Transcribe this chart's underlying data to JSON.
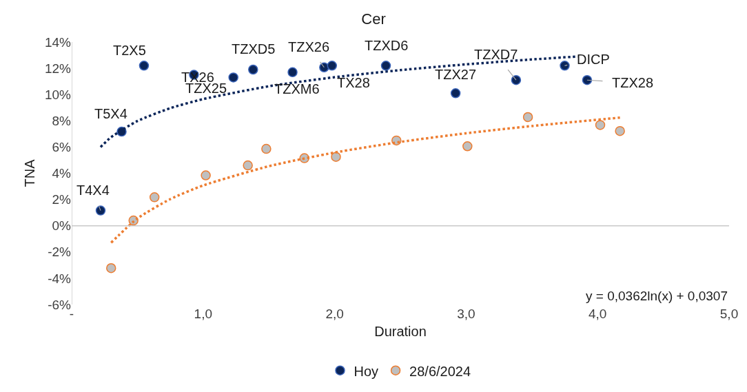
{
  "chart_data": {
    "type": "scatter",
    "title": "Cer",
    "xlabel": "Duration",
    "ylabel": "TNA",
    "xlim": [
      0,
      5
    ],
    "xticks": [
      {
        "value": 0,
        "label": "-"
      },
      {
        "value": 1,
        "label": "1,0"
      },
      {
        "value": 2,
        "label": "2,0"
      },
      {
        "value": 3,
        "label": "3,0"
      },
      {
        "value": 4,
        "label": "4,0"
      },
      {
        "value": 5,
        "label": "5,0"
      }
    ],
    "ylim": [
      -6,
      14
    ],
    "yticks": [
      {
        "value": -6,
        "label": "-6%"
      },
      {
        "value": -4,
        "label": "-4%"
      },
      {
        "value": -2,
        "label": "-2%"
      },
      {
        "value": 0,
        "label": "0%"
      },
      {
        "value": 2,
        "label": "2%"
      },
      {
        "value": 4,
        "label": "4%"
      },
      {
        "value": 6,
        "label": "6%"
      },
      {
        "value": 8,
        "label": "8%"
      },
      {
        "value": 10,
        "label": "10%"
      },
      {
        "value": 12,
        "label": "12%"
      },
      {
        "value": 14,
        "label": "14%"
      }
    ],
    "ref_lines": [
      {
        "axis": "y",
        "value": 0,
        "color": "#c8c8c8"
      }
    ],
    "legend": "bottom",
    "marker": "circle",
    "series": [
      {
        "name": "Hoy",
        "color": "#0b2559",
        "x": [
          0.22,
          0.38,
          0.55,
          0.93,
          1.23,
          1.38,
          1.68,
          1.92,
          1.98,
          2.39,
          2.92,
          3.38,
          3.75,
          3.92
        ],
        "values": [
          1.16,
          7.17,
          12.2,
          11.5,
          11.3,
          11.9,
          11.7,
          12.07,
          12.2,
          12.2,
          10.1,
          11.1,
          12.2,
          11.1
        ]
      },
      {
        "name": "28/6/2024",
        "color": "#ed7d31",
        "x": [
          0.3,
          0.47,
          0.63,
          1.02,
          1.34,
          1.48,
          1.77,
          2.01,
          2.47,
          3.01,
          3.47,
          4.02,
          4.17
        ],
        "values": [
          -3.23,
          0.4,
          2.17,
          3.84,
          4.6,
          5.86,
          5.15,
          5.25,
          6.5,
          6.06,
          8.28,
          7.68,
          7.22
        ]
      },
      {
        "type": "line",
        "color": "#0b2559",
        "line_style": "dotted",
        "marker": "none",
        "x": [
          0.22,
          0.3,
          0.5,
          0.75,
          1,
          1.5,
          2,
          2.5,
          3,
          3.5,
          3.85
        ],
        "values": [
          6.0,
          6.75,
          7.98,
          8.96,
          9.65,
          10.63,
          11.32,
          11.86,
          12.3,
          12.67,
          12.9
        ]
      },
      {
        "type": "line",
        "color": "#ed7d31",
        "line_style": "dotted",
        "marker": "none",
        "x": [
          0.3,
          0.5,
          0.75,
          1,
          1.5,
          2,
          2.5,
          3,
          3.5,
          4.17
        ],
        "values": [
          -1.29,
          0.56,
          2.03,
          3.07,
          4.54,
          5.58,
          6.39,
          7.05,
          7.6,
          8.24
        ]
      }
    ],
    "annotations": [
      {
        "text": "T4X4",
        "x": 0.22,
        "y": 1.16
      },
      {
        "text": "T5X4",
        "x": 0.38,
        "y": 7.17
      },
      {
        "text": "T2X5",
        "x": 0.55,
        "y": 12.2
      },
      {
        "text": "TX26",
        "x": 0.93,
        "y": 11.5
      },
      {
        "text": "TZX25",
        "x": 1.23,
        "y": 11.3
      },
      {
        "text": "TZXD5",
        "x": 1.38,
        "y": 11.9
      },
      {
        "text": "TZXM6",
        "x": 1.68,
        "y": 11.7
      },
      {
        "text": "TZX26",
        "x": 1.92,
        "y": 12.07
      },
      {
        "text": "TX28",
        "x": 1.98,
        "y": 12.2
      },
      {
        "text": "TZXD6",
        "x": 2.39,
        "y": 12.2
      },
      {
        "text": "TZX27",
        "x": 2.92,
        "y": 10.1
      },
      {
        "text": "TZXD7",
        "x": 3.38,
        "y": 11.1
      },
      {
        "text": "DICP",
        "x": 3.75,
        "y": 12.2
      },
      {
        "text": "TZX28",
        "x": 3.92,
        "y": 11.1
      },
      "y = 0,0362ln(x) + 0,0307"
    ]
  }
}
